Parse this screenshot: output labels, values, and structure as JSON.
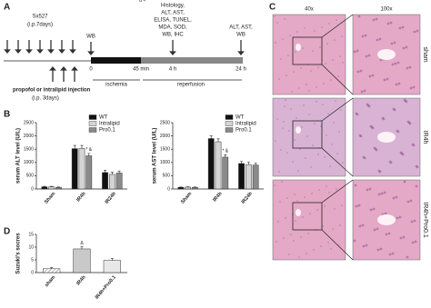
{
  "panels": {
    "A": "A",
    "B": "B",
    "C": "C",
    "D": "D"
  },
  "timeline": {
    "pretreat": "Sx527",
    "pretreat_route": "(i.p.7days)",
    "wb": "WB",
    "histology": "Histology,",
    "histology_2": "ALT, AST,",
    "histology_3": "ELISA, TUNEL,",
    "histology_4": "MDA, SOD,",
    "histology_5": "WB, IHC",
    "end_assays": "ALT, AST,",
    "end_assays_2": "WB",
    "t0": "0",
    "t1": "45 min",
    "t2": "4 h",
    "t3": "24 h",
    "ischemia": "ischemia",
    "reperfusion": "reperfusion",
    "injection": "propofol or intralipid injection",
    "injection_route": "(i.p. 3days)"
  },
  "histology": {
    "columns": [
      "40x",
      "100x"
    ],
    "rows": [
      "sham",
      "IR4h",
      "IR4h+Pro0.1"
    ]
  },
  "chart_data": [
    {
      "type": "bar",
      "y_label": "serum ALT level (U/L)",
      "categories": [
        "Sham",
        "IR4h",
        "IR24h"
      ],
      "series": [
        {
          "name": "WT",
          "color": "#111111",
          "values": [
            80,
            1520,
            620
          ],
          "errors": [
            20,
            120,
            90
          ]
        },
        {
          "name": "Intralipid",
          "color": "#d4d4d4",
          "values": [
            80,
            1530,
            550
          ],
          "errors": [
            20,
            110,
            80
          ]
        },
        {
          "name": "Pro0.1",
          "color": "#8a8a8a",
          "values": [
            60,
            1250,
            600
          ],
          "errors": [
            15,
            90,
            80
          ]
        }
      ],
      "ylim": [
        0,
        2500
      ],
      "yticks": [
        0,
        500,
        1000,
        1500,
        2000,
        2500
      ],
      "legend": "upper right",
      "annotations": [
        "* &"
      ]
    },
    {
      "type": "bar",
      "y_label": "serum AST level (U/L)",
      "categories": [
        "Sham",
        "IR4h",
        "IR24h"
      ],
      "series": [
        {
          "name": "WT",
          "color": "#111111",
          "values": [
            60,
            1900,
            960
          ],
          "errors": [
            15,
            100,
            80
          ]
        },
        {
          "name": "Intralipid",
          "color": "#d4d4d4",
          "values": [
            70,
            1780,
            920
          ],
          "errors": [
            15,
            110,
            90
          ]
        },
        {
          "name": "Pro0.1",
          "color": "#8a8a8a",
          "values": [
            60,
            1200,
            900
          ],
          "errors": [
            15,
            90,
            80
          ]
        }
      ],
      "ylim": [
        0,
        2500
      ],
      "yticks": [
        0,
        500,
        1000,
        1500,
        2000,
        2500
      ],
      "legend": "upper right",
      "annotations": [
        "* &"
      ]
    },
    {
      "type": "bar",
      "y_label": "Suzuki's socres",
      "categories": [
        "sham",
        "IR4h",
        "IR4h+Pro0.1"
      ],
      "series": [
        {
          "colors": [
            "#ffffff",
            "#c9c9c9",
            "#e8e8e8"
          ],
          "values": [
            1.5,
            9.3,
            4.8
          ],
          "errors": [
            0.5,
            0.8,
            0.7
          ]
        }
      ],
      "ylim": [
        0,
        15
      ],
      "yticks": [
        0,
        5,
        10,
        15
      ],
      "annotations": [
        "Δ",
        "Δ #"
      ]
    }
  ]
}
